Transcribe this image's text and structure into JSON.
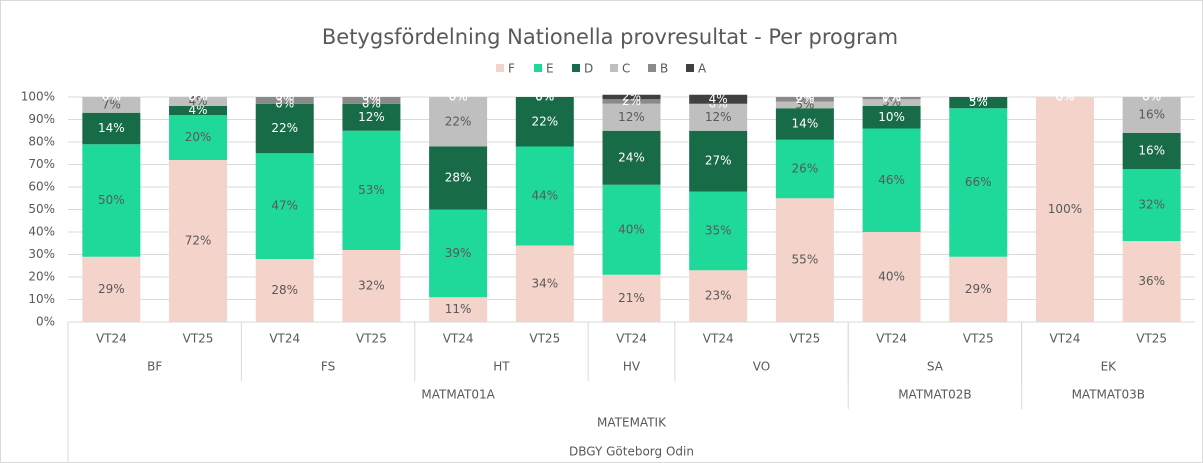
{
  "chart_data": {
    "type": "stacked_bar",
    "title": "Betygsfördelning Nationella provresultat - Per program",
    "categories": [
      "VT24",
      "VT25",
      "VT24",
      "VT25",
      "VT24",
      "VT25",
      "VT24",
      "VT24",
      "VT25",
      "VT24",
      "VT25",
      "VT24",
      "VT25"
    ],
    "category_groups": [
      [
        {
          "label": "BF",
          "span": 2
        },
        {
          "label": "FS",
          "span": 2
        },
        {
          "label": "HT",
          "span": 2
        },
        {
          "label": "HV",
          "span": 1
        },
        {
          "label": "VO",
          "span": 2
        },
        {
          "label": "SA",
          "span": 2
        },
        {
          "label": "EK",
          "span": 2
        }
      ],
      [
        {
          "label": "MATMAT01A",
          "span": 9
        },
        {
          "label": "MATMAT02B",
          "span": 2
        },
        {
          "label": "MATMAT03B",
          "span": 2
        }
      ],
      [
        {
          "label": "MATEMATIK",
          "span": 13
        }
      ],
      [
        {
          "label": "DBGY Göteborg Odin",
          "span": 13
        }
      ]
    ],
    "series": [
      {
        "name": "F",
        "color": "#f4d4ca",
        "values": [
          29,
          72,
          28,
          32,
          11,
          34,
          21,
          23,
          55,
          40,
          29,
          100,
          36
        ],
        "value_labels": [
          "29%",
          "72%",
          "28%",
          "32%",
          "11%",
          "34%",
          "21%",
          "23%",
          "55%",
          "40%",
          "29%",
          "100%",
          "36%"
        ]
      },
      {
        "name": "E",
        "color": "#1fd99b",
        "values": [
          50,
          20,
          47,
          53,
          39,
          44,
          40,
          35,
          26,
          46,
          66,
          0,
          32
        ],
        "value_labels": [
          "50%",
          "20%",
          "47%",
          "53%",
          "39%",
          "44%",
          "40%",
          "35%",
          "26%",
          "46%",
          "66%",
          "0%",
          "32%"
        ]
      },
      {
        "name": "D",
        "color": "#176b47",
        "values": [
          14,
          4,
          22,
          12,
          28,
          22,
          24,
          27,
          14,
          10,
          5,
          0,
          16
        ],
        "value_labels": [
          "14%",
          "4%",
          "22%",
          "12%",
          "28%",
          "22%",
          "24%",
          "27%",
          "14%",
          "10%",
          "5%",
          "0%",
          "16%"
        ]
      },
      {
        "name": "C",
        "color": "#bfbfbf",
        "values": [
          7,
          4,
          0,
          0,
          22,
          0,
          12,
          12,
          3,
          3,
          0,
          0,
          16
        ],
        "value_labels": [
          "7%",
          "4%",
          "0%",
          "0%",
          "22%",
          "0%",
          "12%",
          "12%",
          "3%",
          "3%",
          "0%",
          "0%",
          "16%"
        ]
      },
      {
        "name": "B",
        "color": "#8a8a8a",
        "values": [
          0,
          0,
          3,
          3,
          0,
          0,
          2,
          0,
          2,
          1,
          0,
          0,
          0
        ],
        "value_labels": [
          "0%",
          "0%",
          "3%",
          "3%",
          "0%",
          "0%",
          "2%",
          "0%",
          "2%",
          "1%",
          "0%",
          "0%",
          "0%"
        ]
      },
      {
        "name": "A",
        "color": "#404040",
        "values": [
          0,
          0,
          0,
          0,
          0,
          0,
          2,
          4,
          0,
          0,
          0,
          0,
          0
        ],
        "value_labels": [
          "0%",
          "0%",
          "0%",
          "0%",
          "0%",
          "0%",
          "2%",
          "4%",
          "0%",
          "0%",
          "0%",
          "0%",
          "0%"
        ]
      }
    ],
    "ylim": [
      0,
      100
    ],
    "yticks": [
      {
        "value": 0,
        "label": "0%"
      },
      {
        "value": 10,
        "label": "10%"
      },
      {
        "value": 20,
        "label": "20%"
      },
      {
        "value": 30,
        "label": "30%"
      },
      {
        "value": 40,
        "label": "40%"
      },
      {
        "value": 50,
        "label": "50%"
      },
      {
        "value": 60,
        "label": "60%"
      },
      {
        "value": 70,
        "label": "70%"
      },
      {
        "value": 80,
        "label": "80%"
      },
      {
        "value": 90,
        "label": "90%"
      },
      {
        "value": 100,
        "label": "100%"
      }
    ],
    "grid": true,
    "legend": "top"
  }
}
